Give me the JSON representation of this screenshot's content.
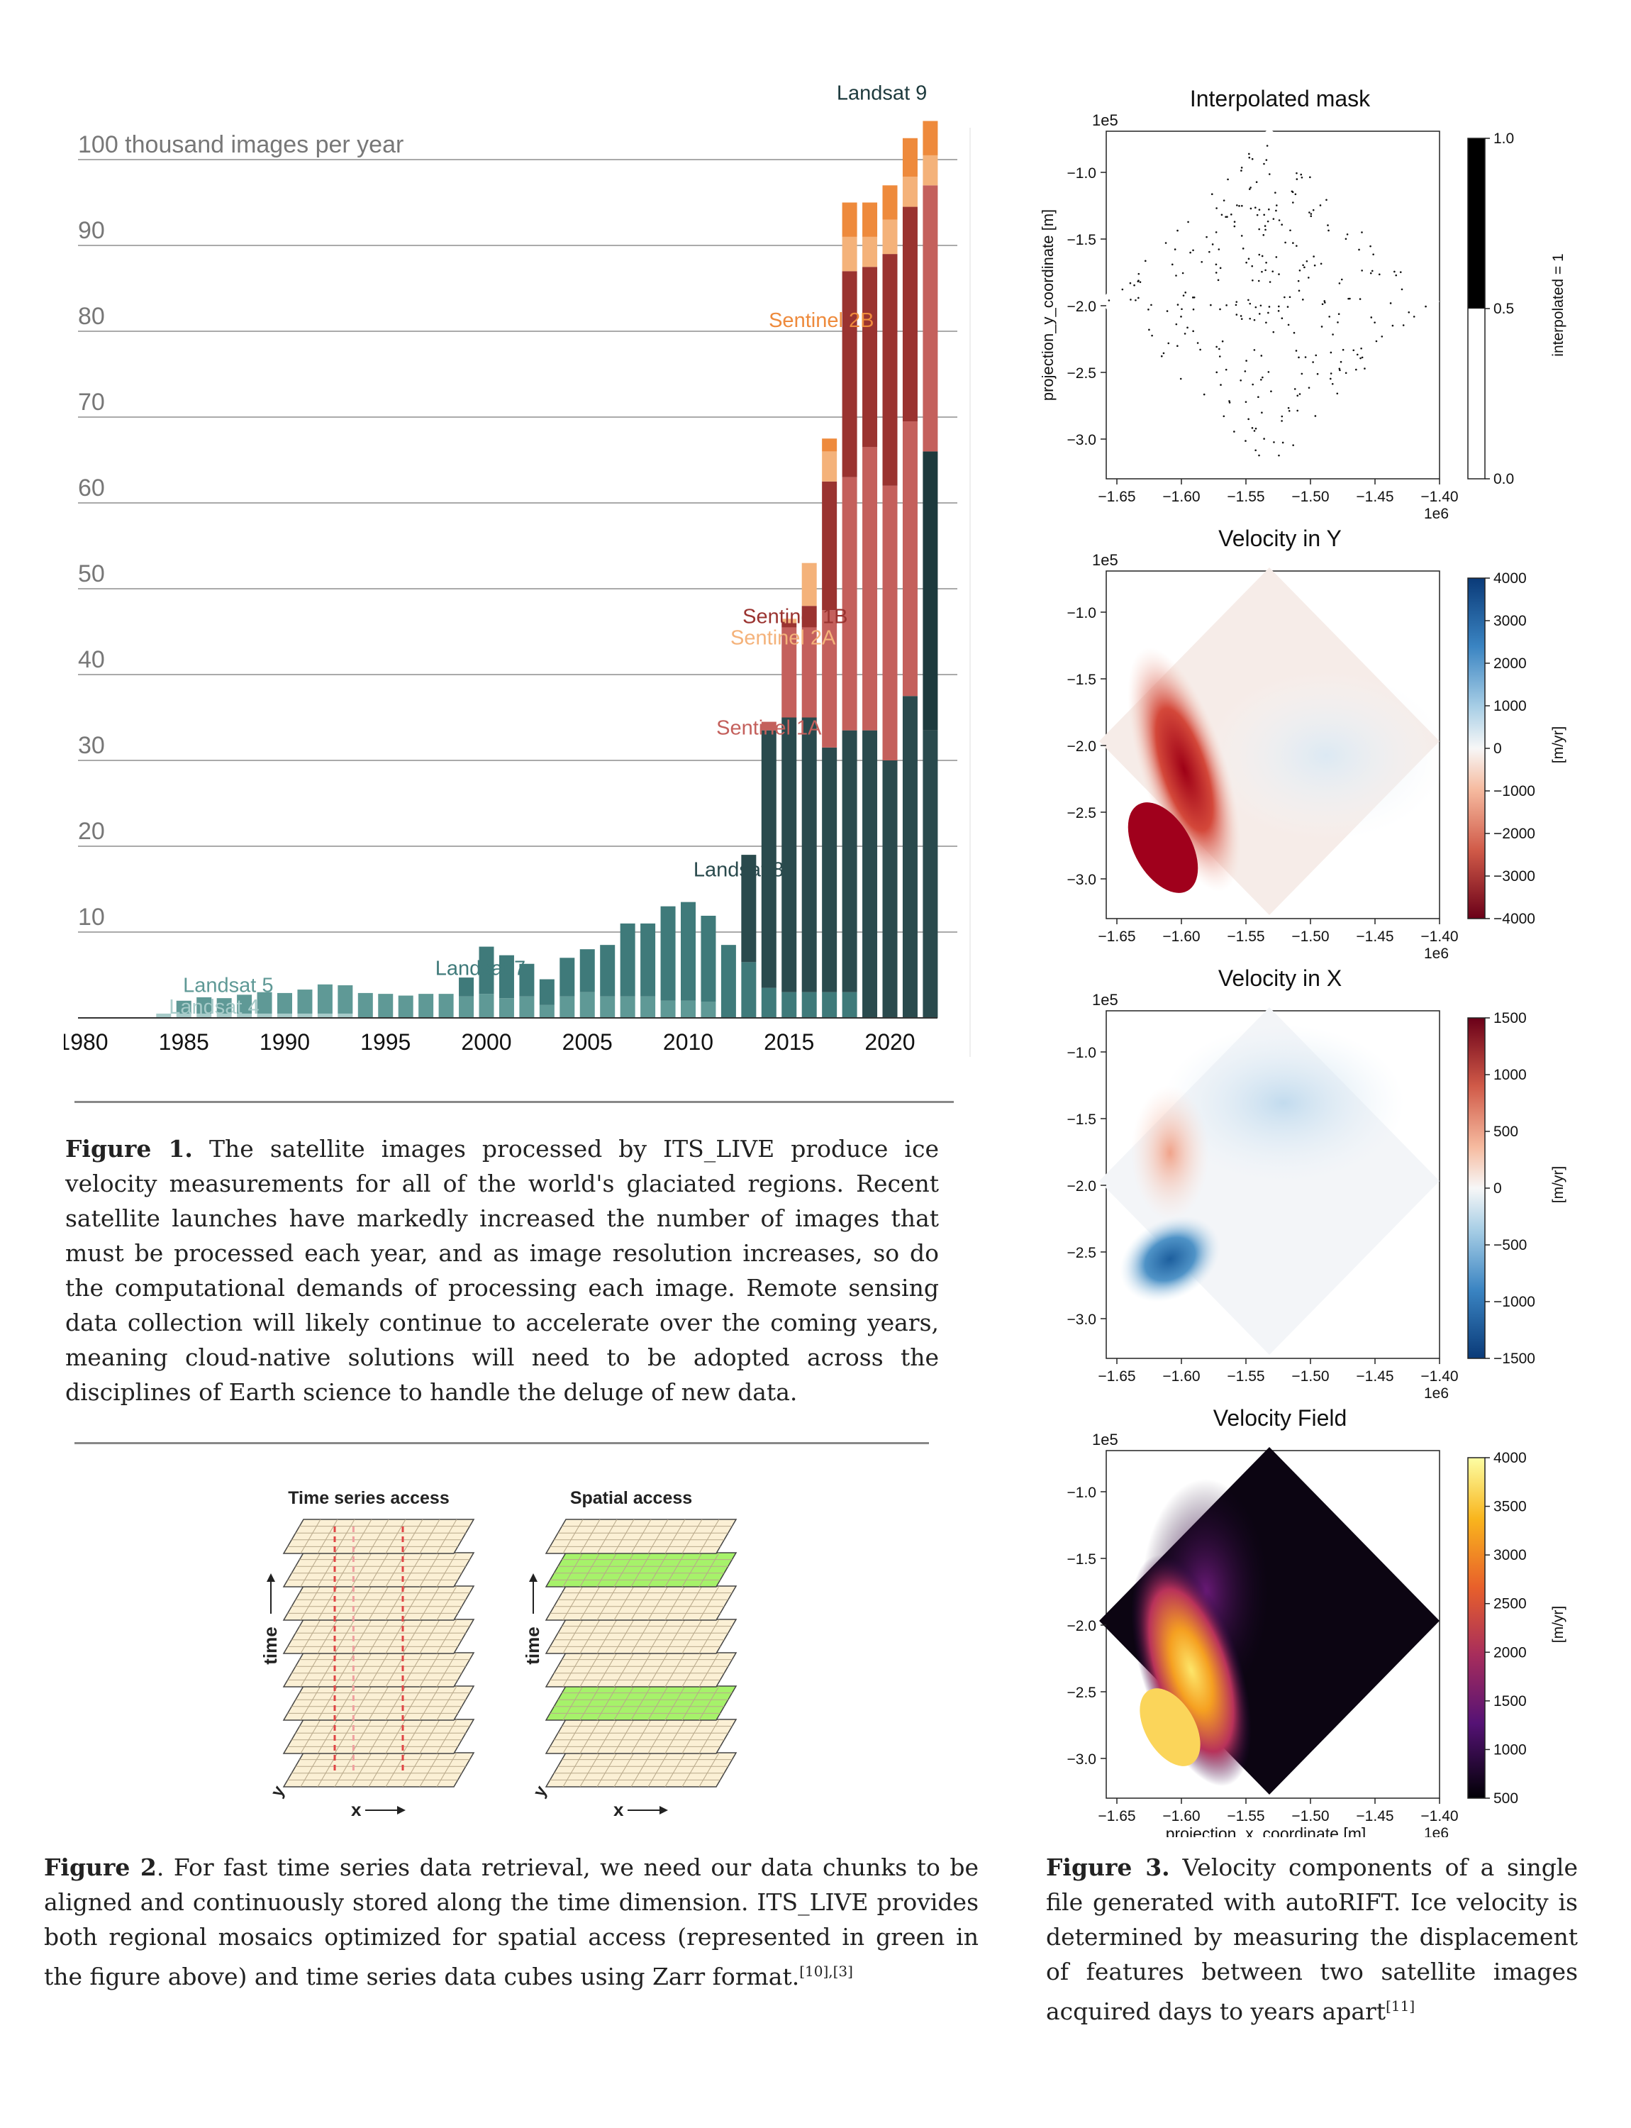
{
  "figure1": {
    "chart_data": {
      "type": "bar",
      "title": "",
      "ylabel_top": "100 thousand images per year",
      "ytick_labels": [
        "90",
        "80",
        "70",
        "60",
        "50",
        "40",
        "30",
        "20",
        "10"
      ],
      "yticks": [
        90,
        80,
        70,
        60,
        50,
        40,
        30,
        20,
        10
      ],
      "xtick_labels": [
        "1980",
        "1985",
        "1990",
        "1995",
        "2000",
        "2005",
        "2010",
        "2015",
        "2020"
      ],
      "xticks": [
        1980,
        1985,
        1990,
        1995,
        2000,
        2005,
        2010,
        2015,
        2020
      ],
      "ylim": [
        0,
        105
      ],
      "xlim": [
        1980,
        2022.5
      ],
      "years": [
        1984,
        1985,
        1986,
        1987,
        1988,
        1989,
        1990,
        1991,
        1992,
        1993,
        1994,
        1995,
        1996,
        1997,
        1998,
        1999,
        2000,
        2001,
        2002,
        2003,
        2004,
        2005,
        2006,
        2007,
        2008,
        2009,
        2010,
        2011,
        2012,
        2013,
        2014,
        2015,
        2016,
        2017,
        2018,
        2019,
        2020,
        2021,
        2022
      ],
      "series": [
        {
          "name": "Landsat 4",
          "color": "#a7cbc9",
          "values": [
            0.5,
            0.5,
            0.5,
            0.5,
            0.5,
            0.5,
            0.5,
            0.5,
            0.5,
            0.5,
            0,
            0,
            0,
            0,
            0,
            0,
            0,
            0,
            0,
            0,
            0,
            0,
            0,
            0,
            0,
            0,
            0,
            0,
            0,
            0,
            0,
            0,
            0,
            0,
            0,
            0,
            0,
            0,
            0
          ]
        },
        {
          "name": "Landsat 5",
          "color": "#5f9996",
          "values": [
            0,
            1.5,
            1.9,
            1.8,
            2.2,
            2.5,
            2.4,
            2.8,
            3.4,
            3.3,
            2.9,
            2.8,
            2.6,
            2.8,
            2.8,
            2.5,
            2.8,
            2.3,
            2.5,
            1.5,
            2.5,
            3,
            2.5,
            2.5,
            2.5,
            2,
            2,
            1.9,
            0,
            0,
            0,
            0,
            0,
            0,
            0,
            0,
            0,
            0,
            0
          ]
        },
        {
          "name": "Landsat 7",
          "color": "#3f7a7a",
          "values": [
            0,
            0,
            0,
            0,
            0,
            0,
            0,
            0,
            0,
            0,
            0,
            0,
            0,
            0,
            0,
            2.2,
            5.5,
            5,
            3.8,
            3,
            4.5,
            5,
            6,
            8.5,
            8.5,
            11,
            11.5,
            10,
            8.5,
            6.5,
            3.5,
            3,
            3,
            3,
            3,
            0,
            0,
            0,
            0
          ]
        },
        {
          "name": "Landsat 8",
          "color": "#2a4a4d",
          "values": [
            0,
            0,
            0,
            0,
            0,
            0,
            0,
            0,
            0,
            0,
            0,
            0,
            0,
            0,
            0,
            0,
            0,
            0,
            0,
            0,
            0,
            0,
            0,
            0,
            0,
            0,
            0,
            0,
            0,
            12.5,
            30,
            32,
            32,
            28.5,
            30.5,
            33.5,
            30,
            37.5,
            33.5
          ]
        },
        {
          "name": "Landsat 9",
          "color": "#1d3a3d",
          "values": [
            0,
            0,
            0,
            0,
            0,
            0,
            0,
            0,
            0,
            0,
            0,
            0,
            0,
            0,
            0,
            0,
            0,
            0,
            0,
            0,
            0,
            0,
            0,
            0,
            0,
            0,
            0,
            0,
            0,
            0,
            0,
            0,
            0,
            0,
            0,
            0,
            0,
            0,
            32.5
          ]
        },
        {
          "name": "Sentinel 1A",
          "color": "#c4605c",
          "values": [
            0,
            0,
            0,
            0,
            0,
            0,
            0,
            0,
            0,
            0,
            0,
            0,
            0,
            0,
            0,
            0,
            0,
            0,
            0,
            0,
            0,
            0,
            0,
            0,
            0,
            0,
            0,
            0,
            0,
            0,
            1,
            10.5,
            10.5,
            16,
            29.5,
            33,
            32,
            32,
            31
          ]
        },
        {
          "name": "Sentinel 1B",
          "color": "#9a3330",
          "values": [
            0,
            0,
            0,
            0,
            0,
            0,
            0,
            0,
            0,
            0,
            0,
            0,
            0,
            0,
            0,
            0,
            0,
            0,
            0,
            0,
            0,
            0,
            0,
            0,
            0,
            0,
            0,
            0,
            0,
            0,
            0,
            0.5,
            2.5,
            15,
            24,
            21,
            27,
            25,
            0
          ]
        },
        {
          "name": "Sentinel 2A",
          "color": "#f4b27a",
          "values": [
            0,
            0,
            0,
            0,
            0,
            0,
            0,
            0,
            0,
            0,
            0,
            0,
            0,
            0,
            0,
            0,
            0,
            0,
            0,
            0,
            0,
            0,
            0,
            0,
            0,
            0,
            0,
            0,
            0,
            0,
            0,
            0.5,
            5,
            3.5,
            4,
            3.5,
            4,
            3.5,
            3.5
          ]
        },
        {
          "name": "Sentinel 2B",
          "color": "#ee8a3c",
          "values": [
            0,
            0,
            0,
            0,
            0,
            0,
            0,
            0,
            0,
            0,
            0,
            0,
            0,
            0,
            0,
            0,
            0,
            0,
            0,
            0,
            0,
            0,
            0,
            0,
            0,
            0,
            0,
            0,
            0,
            0,
            0,
            0,
            0,
            1.5,
            4,
            4,
            4,
            4.5,
            4
          ]
        }
      ],
      "annotations": [
        {
          "text": "Landsat 9",
          "color": "#1d3a3d",
          "x": 2019.6,
          "y": 107
        },
        {
          "text": "Sentinel 2B",
          "color": "#ee8a3c",
          "x": 2016.6,
          "y": 80.5
        },
        {
          "text": "Sentinel 1B",
          "color": "#9a3330",
          "x": 2015.3,
          "y": 46
        },
        {
          "text": "Sentinel 2A",
          "color": "#f4b27a",
          "x": 2014.7,
          "y": 43.5
        },
        {
          "text": "Sentinel 1A",
          "color": "#c4605c",
          "x": 2014,
          "y": 33
        },
        {
          "text": "Landsat 8",
          "color": "#2a4a4d",
          "x": 2012.5,
          "y": 16.5
        },
        {
          "text": "Landsat 7",
          "color": "#3f7a7a",
          "x": 1999.7,
          "y": 5
        },
        {
          "text": "Landsat 5",
          "color": "#5f9996",
          "x": 1987.2,
          "y": 3
        },
        {
          "text": "Landsat 4",
          "color": "#a7cbc9",
          "x": 1986.5,
          "y": 0.5
        }
      ]
    },
    "caption_label": "Figure 1.",
    "caption_text": " The satellite images processed by ITS_LIVE produce ice velocity measurements for all of the world's glaciated regions. Recent satellite launches have markedly increased the number of images that must be processed each year, and as image resolution increases, so do the computational demands of processing each image. Remote sensing data collection will likely continue to accelerate over the coming years, meaning cloud-native solutions will need to be adopted across the disciplines of Earth science to handle the deluge of new data."
  },
  "figure2": {
    "left_title": "Time series access",
    "right_title": "Spatial access",
    "time_label": "time",
    "x_label": "x",
    "y_label": "y",
    "caption_label": "Figure 2",
    "caption_text": ". For fast time series data retrieval, we need our data chunks to be aligned and continuously stored along the time dimension.  ITS_LIVE provides both regional mosaics optimized for spatial access (represented in green in the figure above) and time series data cubes using Zarr format.",
    "caption_refs": "[10],[3]"
  },
  "figure3": {
    "panels": [
      {
        "title": "Interpolated mask",
        "offset": "1e5",
        "offset_x": "1e6",
        "ylabel": "projection_y_coordinate [m]",
        "cbar_label": "interpolated = 1",
        "cbar_ticks": [
          "1.0",
          "0.5",
          "0.0"
        ]
      },
      {
        "title": "Velocity in Y",
        "offset": "1e5",
        "offset_x": "1e6",
        "cbar_label": "[m/yr]",
        "cbar_ticks": [
          "4000",
          "3000",
          "2000",
          "1000",
          "0",
          "−1000",
          "−2000",
          "−3000",
          "−4000"
        ]
      },
      {
        "title": "Velocity in X",
        "offset": "1e5",
        "offset_x": "1e6",
        "cbar_label": "[m/yr]",
        "cbar_ticks": [
          "1500",
          "1000",
          "500",
          "0",
          "−500",
          "−1000",
          "−1500"
        ]
      },
      {
        "title": "Velocity Field",
        "offset": "1e5",
        "offset_x": "1e6",
        "xlabel": "projection_x_coordinate [m]",
        "cbar_label": "[m/yr]",
        "cbar_ticks": [
          "4000",
          "3500",
          "3000",
          "2500",
          "2000",
          "1500",
          "1000",
          "500"
        ]
      }
    ],
    "yticks": [
      "−1.0",
      "−1.5",
      "−2.0",
      "−2.5",
      "−3.0"
    ],
    "xticks": [
      "−1.65",
      "−1.60",
      "−1.55",
      "−1.50",
      "−1.45",
      "−1.40"
    ],
    "caption_label": "Figure 3.",
    "caption_text": " Velocity components of a single file generated with autoRIFT. Ice velocity is determined by measuring the displacement of features between two satellite images acquired days to years apart",
    "caption_refs": "[11]"
  }
}
